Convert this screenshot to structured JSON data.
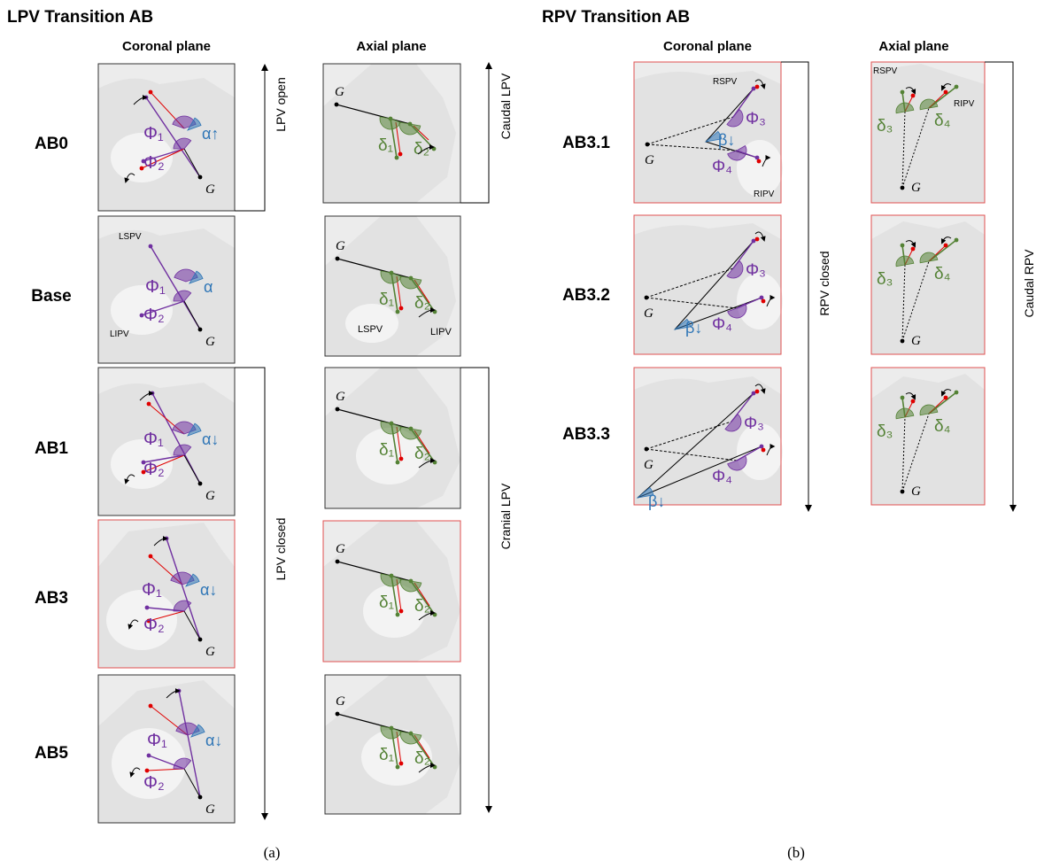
{
  "panel_a": {
    "title": "LPV Transition AB",
    "coronal_header": "Coronal plane",
    "axial_header": "Axial plane",
    "rows": [
      "AB0",
      "Base",
      "AB1",
      "AB3",
      "AB5"
    ],
    "coronal_labels": {
      "phi1": "Φ₁",
      "phi2": "Φ₂",
      "g": "G",
      "alpha_up": "α↑",
      "alpha": "α",
      "alpha_down": "α↓",
      "lspv": "LSPV",
      "lipv": "LIPV"
    },
    "axial_labels": {
      "d1": "δ₁",
      "d2": "δ₂",
      "g": "G",
      "lspv": "LSPV",
      "lipv": "LIPV"
    },
    "side_open": "LPV open",
    "side_closed": "LPV closed",
    "side_caudal": "Caudal LPV",
    "side_cranial": "Cranial LPV",
    "caption": "(a)"
  },
  "panel_b": {
    "title": "RPV Transition AB",
    "coronal_header": "Coronal plane",
    "axial_header": "Axial plane",
    "rows": [
      "AB3.1",
      "AB3.2",
      "AB3.3"
    ],
    "coronal_labels": {
      "phi3": "Φ₃",
      "phi4": "Φ₄",
      "g": "G",
      "beta_down": "β↓",
      "rspv": "RSPV",
      "ripv": "RIPV"
    },
    "axial_labels": {
      "d3": "δ₃",
      "d4": "δ₄",
      "g": "G",
      "rspv": "RSPV",
      "ripv": "RIPV"
    },
    "side_closed": "RPV closed",
    "side_caudal": "Caudal RPV",
    "caption": "(b)"
  },
  "colors": {
    "purple": "#7030a0",
    "green": "#548235",
    "blue": "#2e75b6",
    "red": "#e00000",
    "frame_red": "#e05050",
    "frame_black": "#333333",
    "tissue": "#e6e6e6"
  }
}
